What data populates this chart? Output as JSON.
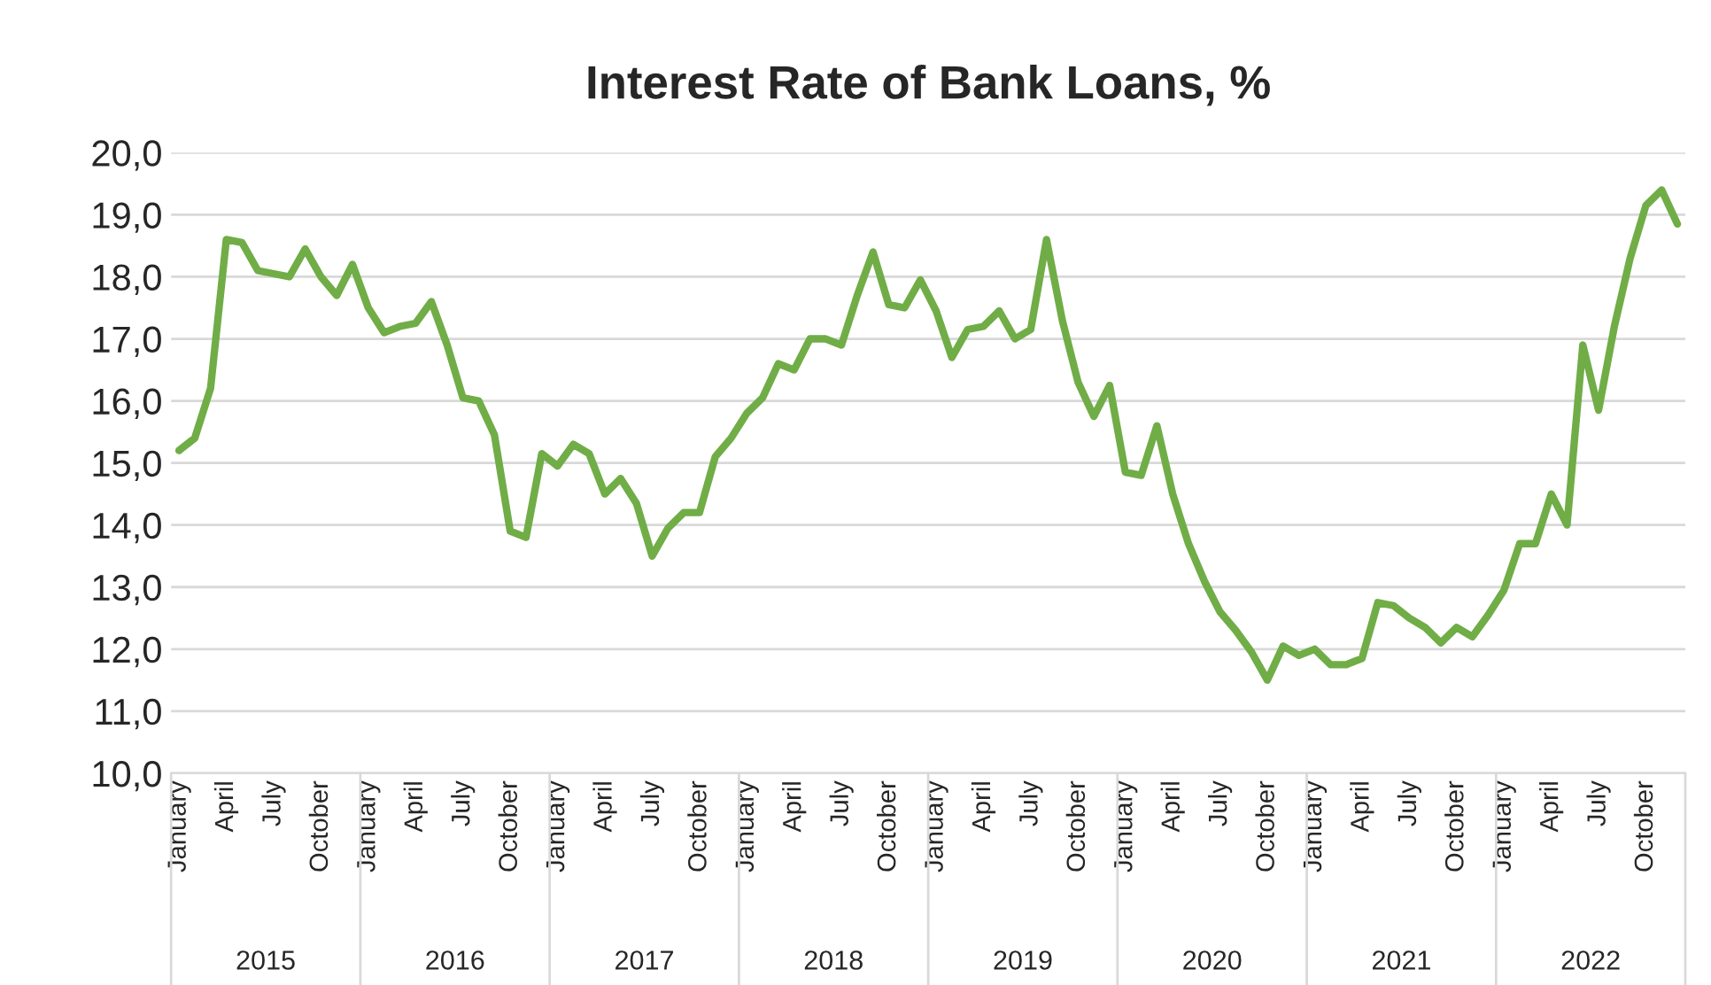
{
  "chart_data": {
    "type": "line",
    "title": "Interest Rate of Bank Loans, %",
    "categories": [
      "January",
      null,
      null,
      "April",
      null,
      null,
      "July",
      null,
      null,
      "October",
      null,
      null,
      "January",
      null,
      null,
      "April",
      null,
      null,
      "July",
      null,
      null,
      "October",
      null,
      null,
      "January",
      null,
      null,
      "April",
      null,
      null,
      "July",
      null,
      null,
      "October",
      null,
      null,
      "January",
      null,
      null,
      "April",
      null,
      null,
      "July",
      null,
      null,
      "October",
      null,
      null,
      "January",
      null,
      null,
      "April",
      null,
      null,
      "July",
      null,
      null,
      "October",
      null,
      null,
      "January",
      null,
      null,
      "April",
      null,
      null,
      "July",
      null,
      null,
      "October",
      null,
      null,
      "January",
      null,
      null,
      "April",
      null,
      null,
      "July",
      null,
      null,
      "October",
      null,
      null,
      "January",
      null,
      null,
      "April",
      null,
      null,
      "July",
      null,
      null,
      "October",
      null,
      null
    ],
    "series": [
      {
        "color": "#70ad47",
        "values": [
          15.2,
          15.4,
          16.2,
          18.6,
          18.55,
          18.1,
          18.05,
          18.0,
          18.45,
          18.0,
          17.7,
          18.2,
          17.5,
          17.1,
          17.2,
          17.25,
          17.6,
          16.9,
          16.05,
          16.0,
          15.45,
          13.9,
          13.8,
          15.15,
          14.95,
          15.3,
          15.15,
          14.5,
          14.75,
          14.35,
          13.5,
          13.95,
          14.2,
          14.2,
          15.1,
          15.4,
          15.8,
          16.05,
          16.6,
          16.5,
          17.0,
          17.0,
          16.9,
          17.7,
          18.4,
          17.55,
          17.5,
          17.95,
          17.45,
          16.7,
          17.15,
          17.2,
          17.45,
          17.0,
          17.15,
          18.6,
          17.3,
          16.3,
          15.75,
          16.25,
          14.85,
          14.8,
          15.6,
          14.5,
          13.7,
          13.1,
          12.6,
          12.3,
          11.95,
          11.5,
          12.05,
          11.9,
          12.0,
          11.75,
          11.75,
          11.85,
          12.75,
          12.7,
          12.5,
          12.35,
          12.1,
          12.35,
          12.2,
          12.55,
          12.95,
          13.7,
          13.7,
          14.5,
          14.0,
          16.9,
          15.85,
          17.2,
          18.3,
          19.15,
          19.4,
          18.85
        ]
      }
    ],
    "annotations": [
      "2015",
      "2016",
      "2017",
      "2018",
      "2019",
      "2020",
      "2021",
      "2022"
    ],
    "ylim": [
      10,
      20
    ],
    "yticks": [
      {
        "value": 10,
        "label": "10,0"
      },
      {
        "value": 11,
        "label": "11,0"
      },
      {
        "value": 12,
        "label": "12,0"
      },
      {
        "value": 13,
        "label": "13,0"
      },
      {
        "value": 14,
        "label": "14,0"
      },
      {
        "value": 15,
        "label": "15,0"
      },
      {
        "value": 16,
        "label": "16,0"
      },
      {
        "value": 17,
        "label": "17,0"
      },
      {
        "value": 18,
        "label": "18,0"
      },
      {
        "value": 19,
        "label": "19,0"
      },
      {
        "value": 20,
        "label": "20,0"
      }
    ],
    "grid": "y",
    "marker": "none",
    "line_style": "solid",
    "legend": false
  }
}
